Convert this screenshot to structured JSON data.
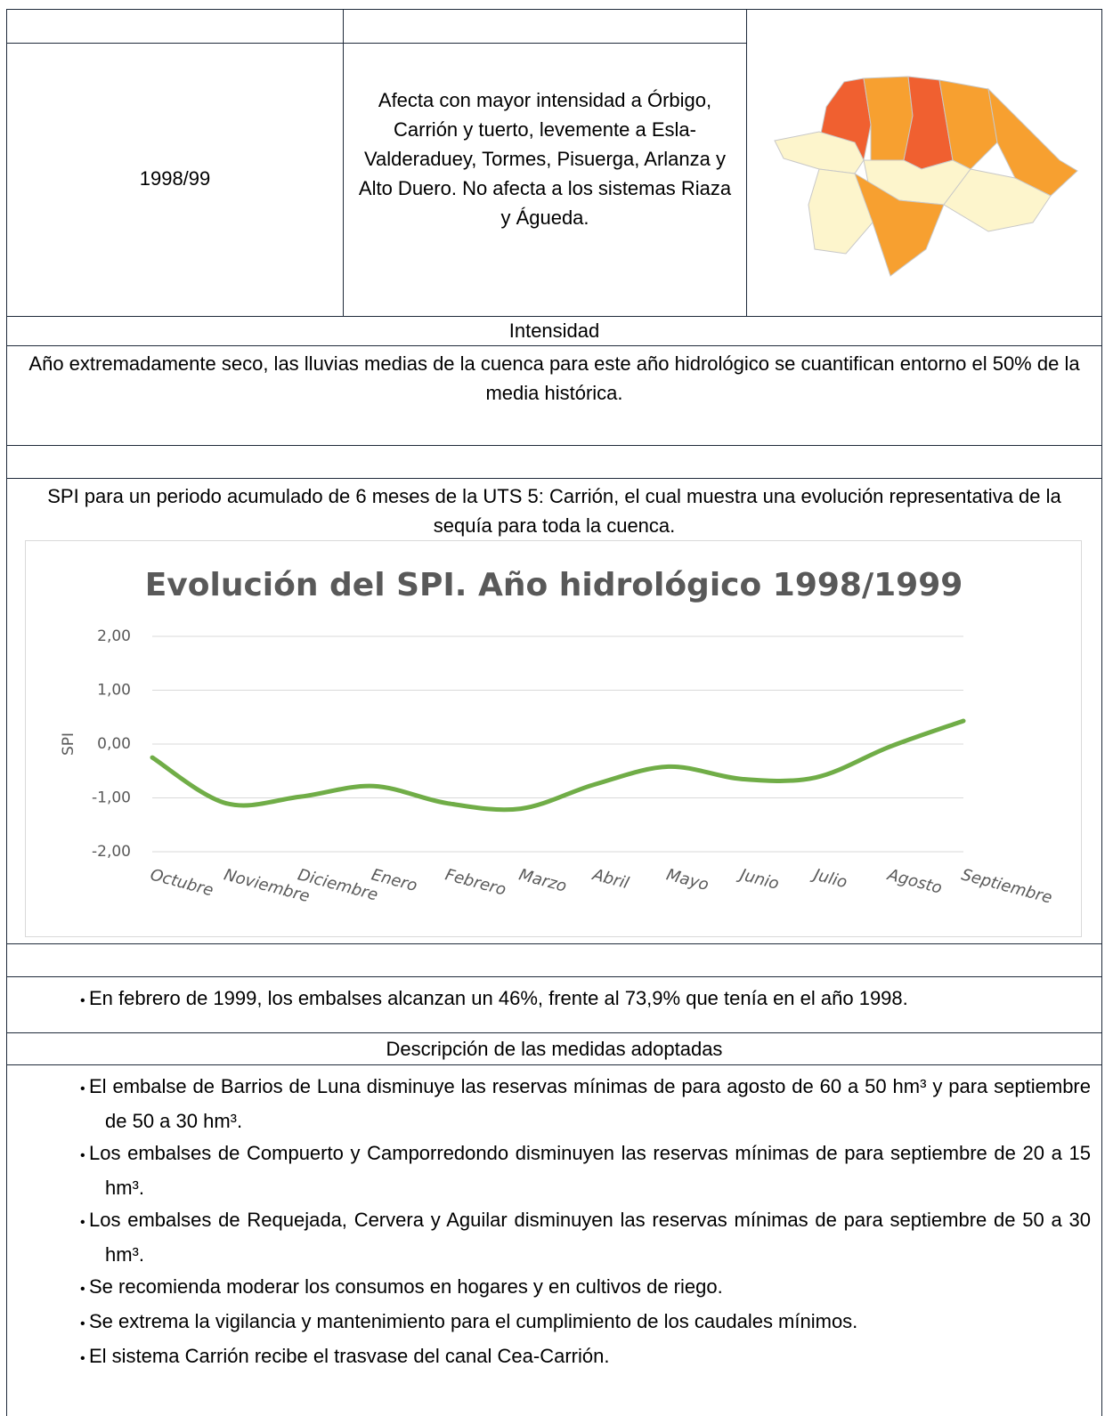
{
  "table": {
    "period": "1998/99",
    "description": "Afecta con mayor intensidad a Órbigo, Carrión y tuerto, levemente a Esla-Valderaduey, Tormes, Pisuerga, Arlanza y Alto Duero. No afecta a los sistemas Riaza y Águeda.",
    "intensity_header": "Intensidad",
    "intensity_text": "Año extremadamente seco, las lluvias medias de la cuenca para este año hidrológico se cuantifican entorno el 50% de la media histórica.",
    "spi_caption": "SPI para un periodo acumulado de 6 meses de la UTS 5: Carrión, el cual muestra una evolución representativa de la sequía para toda la cuenca.",
    "reservoir_bullets": [
      "En febrero de 1999, los embalses alcanzan un 46%, frente al 73,9% que tenía en el año 1998."
    ],
    "measures_header": "Descripción de las medidas adoptadas",
    "measures": [
      "El embalse de Barrios de Luna disminuye las reservas mínimas de para agosto de 60 a 50 hm³ y para septiembre de 50 a 30 hm³.",
      "Los embalses de Compuerto y Camporredondo disminuyen las reservas mínimas de para septiembre de 20 a 15 hm³.",
      "Los embalses de Requejada, Cervera y Aguilar disminuyen las reservas mínimas de para septiembre de 50 a 30 hm³.",
      "Se recomienda moderar los consumos en hogares y en cultivos de riego.",
      "Se extrema la vigilancia y mantenimiento para el cumplimiento de los caudales mínimos.",
      "El sistema Carrión recibe el trasvase del canal Cea-Carrión."
    ]
  },
  "chart_data": {
    "type": "line",
    "title": "Evolución del SPI. Año hidrológico 1998/1999",
    "y_label": "SPI",
    "categories": [
      "Octubre",
      "Noviembre",
      "Diciembre",
      "Enero",
      "Febrero",
      "Marzo",
      "Abril",
      "Mayo",
      "Junio",
      "Julio",
      "Agosto",
      "Septiembre"
    ],
    "series": [
      {
        "name": "SPI",
        "color": "#70ad47",
        "values": [
          -0.25,
          -1.1,
          -0.98,
          -0.78,
          -1.1,
          -1.2,
          -0.75,
          -0.42,
          -0.65,
          -0.62,
          -0.05,
          0.43
        ]
      }
    ],
    "ylim": [
      -2,
      2
    ],
    "yticks": [
      {
        "value": -2,
        "label": "-2,00"
      },
      {
        "value": -1,
        "label": "-1,00"
      },
      {
        "value": 0,
        "label": "0,00"
      },
      {
        "value": 1,
        "label": "1,00"
      },
      {
        "value": 2,
        "label": "2,00"
      }
    ],
    "grid": true,
    "smooth": true
  }
}
